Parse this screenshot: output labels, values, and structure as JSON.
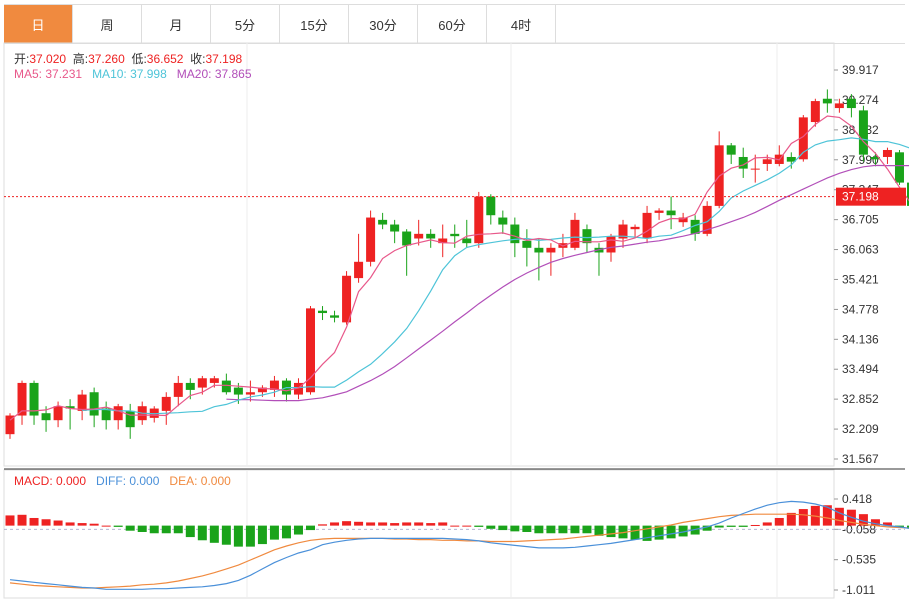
{
  "tabs": [
    {
      "label": "日",
      "active": true
    },
    {
      "label": "周",
      "active": false
    },
    {
      "label": "月",
      "active": false
    },
    {
      "label": "5分",
      "active": false
    },
    {
      "label": "15分",
      "active": false
    },
    {
      "label": "30分",
      "active": false
    },
    {
      "label": "60分",
      "active": false
    },
    {
      "label": "4时",
      "active": false
    }
  ],
  "ohlc_info": {
    "open_label": "开:",
    "open": "37.020",
    "high_label": "高:",
    "high": "37.260",
    "low_label": "低:",
    "low": "36.652",
    "close_label": "收:",
    "close": "37.198"
  },
  "ma_info": {
    "ma5_label": "MA5: ",
    "ma5": "37.231",
    "ma10_label": "MA10: ",
    "ma10": "37.998",
    "ma20_label": "MA20: ",
    "ma20": "37.865"
  },
  "macd_info": {
    "macd_label": "MACD: ",
    "macd": "0.000",
    "diff_label": "DIFF: ",
    "diff": "0.000",
    "dea_label": "DEA: ",
    "dea": "0.000"
  },
  "current_price": "37.198",
  "colors": {
    "up": "#ee2222",
    "down": "#1aa31a",
    "ma5": "#e8588a",
    "ma10": "#4ec4d8",
    "ma20": "#b24fb9",
    "diff": "#4a90d9",
    "dea": "#f08a3f",
    "tab_active": "#f08a3f"
  },
  "chart_data": [
    {
      "type": "candlestick",
      "ylim": [
        31.567,
        39.917
      ],
      "yticks": [
        "39.917",
        "39.274",
        "38.632",
        "37.990",
        "37.347",
        "36.705",
        "36.063",
        "35.421",
        "34.778",
        "34.136",
        "33.494",
        "32.852",
        "32.209",
        "31.567"
      ],
      "candles": [
        [
          32.1,
          32.5,
          32.0,
          32.55
        ],
        [
          32.5,
          33.2,
          32.3,
          33.25
        ],
        [
          33.2,
          32.5,
          32.3,
          33.25
        ],
        [
          32.55,
          32.4,
          32.15,
          32.7
        ],
        [
          32.4,
          32.7,
          32.25,
          32.8
        ],
        [
          32.7,
          32.65,
          32.2,
          32.85
        ],
        [
          32.6,
          32.95,
          32.4,
          33.05
        ],
        [
          33.0,
          32.5,
          32.25,
          33.1
        ],
        [
          32.65,
          32.4,
          32.2,
          32.8
        ],
        [
          32.4,
          32.7,
          32.2,
          32.75
        ],
        [
          32.6,
          32.25,
          32.0,
          32.75
        ],
        [
          32.4,
          32.7,
          32.3,
          32.8
        ],
        [
          32.45,
          32.65,
          32.35,
          32.7
        ],
        [
          32.6,
          32.9,
          32.3,
          33.0
        ],
        [
          32.9,
          33.2,
          32.7,
          33.35
        ],
        [
          33.2,
          33.05,
          32.85,
          33.3
        ],
        [
          33.1,
          33.3,
          32.95,
          33.35
        ],
        [
          33.2,
          33.3,
          33.1,
          33.35
        ],
        [
          33.25,
          33.0,
          32.95,
          33.4
        ],
        [
          33.1,
          32.95,
          32.75,
          33.2
        ],
        [
          32.95,
          33.0,
          32.8,
          33.25
        ],
        [
          33.0,
          33.1,
          32.9,
          33.15
        ],
        [
          33.05,
          33.25,
          32.9,
          33.35
        ],
        [
          33.25,
          32.95,
          32.8,
          33.3
        ],
        [
          32.95,
          33.2,
          32.85,
          33.3
        ],
        [
          33.0,
          34.8,
          32.95,
          34.85
        ],
        [
          34.75,
          34.7,
          34.55,
          34.85
        ],
        [
          34.65,
          34.6,
          34.5,
          34.75
        ],
        [
          34.5,
          35.5,
          34.45,
          35.6
        ],
        [
          35.45,
          35.8,
          35.35,
          36.4
        ],
        [
          35.8,
          36.75,
          35.7,
          36.9
        ],
        [
          36.7,
          36.6,
          36.5,
          36.85
        ],
        [
          36.6,
          36.45,
          36.2,
          36.7
        ],
        [
          36.45,
          36.15,
          35.5,
          36.5
        ],
        [
          36.3,
          36.4,
          36.15,
          36.7
        ],
        [
          36.4,
          36.3,
          36.1,
          36.5
        ],
        [
          36.2,
          36.3,
          35.9,
          36.6
        ],
        [
          36.4,
          36.35,
          36.1,
          36.6
        ],
        [
          36.3,
          36.2,
          36.1,
          36.7
        ],
        [
          36.2,
          37.2,
          36.1,
          37.3
        ],
        [
          37.2,
          36.8,
          36.6,
          37.25
        ],
        [
          36.75,
          36.6,
          36.4,
          36.9
        ],
        [
          36.6,
          36.2,
          35.9,
          36.75
        ],
        [
          36.25,
          36.1,
          35.7,
          36.5
        ],
        [
          36.1,
          36.0,
          35.4,
          36.3
        ],
        [
          36.0,
          36.1,
          35.5,
          36.2
        ],
        [
          36.1,
          36.2,
          35.9,
          36.4
        ],
        [
          36.1,
          36.7,
          36.05,
          36.85
        ],
        [
          36.5,
          36.2,
          36.0,
          36.6
        ],
        [
          36.1,
          36.0,
          35.5,
          36.2
        ],
        [
          36.0,
          36.35,
          35.8,
          36.4
        ],
        [
          36.3,
          36.6,
          36.1,
          36.7
        ],
        [
          36.5,
          36.55,
          36.3,
          36.6
        ],
        [
          36.3,
          36.85,
          36.2,
          37.0
        ],
        [
          36.85,
          36.9,
          36.7,
          36.95
        ],
        [
          36.9,
          36.8,
          36.5,
          37.2
        ],
        [
          36.65,
          36.75,
          36.55,
          36.85
        ],
        [
          36.7,
          36.4,
          36.25,
          36.8
        ],
        [
          36.4,
          37.0,
          36.35,
          37.1
        ],
        [
          37.0,
          38.3,
          36.95,
          38.6
        ],
        [
          38.3,
          38.1,
          37.9,
          38.35
        ],
        [
          38.05,
          37.8,
          37.6,
          38.25
        ],
        [
          37.8,
          37.8,
          37.5,
          38.1
        ],
        [
          37.9,
          38.0,
          37.75,
          38.1
        ],
        [
          37.9,
          38.1,
          37.85,
          38.3
        ],
        [
          38.05,
          37.95,
          37.8,
          38.15
        ],
        [
          38.0,
          38.9,
          37.95,
          38.95
        ],
        [
          38.8,
          39.25,
          38.7,
          39.3
        ],
        [
          39.3,
          39.2,
          39.0,
          39.5
        ],
        [
          39.1,
          39.2,
          39.0,
          39.3
        ],
        [
          39.3,
          39.1,
          38.9,
          39.4
        ],
        [
          39.05,
          38.1,
          37.95,
          39.15
        ],
        [
          38.05,
          38.0,
          37.85,
          38.15
        ],
        [
          38.05,
          38.2,
          37.9,
          38.25
        ],
        [
          38.15,
          37.5,
          37.45,
          38.2
        ],
        [
          37.5,
          37.0,
          36.45,
          37.6
        ],
        [
          37.0,
          36.85,
          36.3,
          37.1
        ],
        [
          36.9,
          37.1,
          36.5,
          37.25
        ],
        [
          37.02,
          37.2,
          36.65,
          37.26
        ]
      ],
      "ma5": [
        32.4,
        32.6,
        32.6,
        32.62,
        32.71,
        32.65,
        32.63,
        32.64,
        32.68,
        32.6,
        32.51,
        32.51,
        32.51,
        32.5,
        32.72,
        32.93,
        33.0,
        33.15,
        33.15,
        33.13,
        33.11,
        33.08,
        33.07,
        33.03,
        33.09,
        33.31,
        33.6,
        33.85,
        34.4,
        35.16,
        35.46,
        35.87,
        36.04,
        36.15,
        36.21,
        36.27,
        36.21,
        36.2,
        36.35,
        36.39,
        36.4,
        36.42,
        36.35,
        36.26,
        36.3,
        36.27,
        36.14,
        36.24,
        36.23,
        36.23,
        36.27,
        36.24,
        36.31,
        36.46,
        36.64,
        36.73,
        36.72,
        36.82,
        37.3,
        37.64,
        37.81,
        37.88,
        38.03,
        38.04,
        37.99,
        38.34,
        38.49,
        38.75,
        38.93,
        38.9,
        38.71,
        38.38,
        38.13,
        37.79,
        37.4,
        37.04,
        36.96,
        37.1,
        37.231
      ],
      "ma10": [
        32.61,
        32.63,
        32.63,
        32.6,
        32.6,
        32.55,
        32.54,
        32.55,
        32.56,
        32.58,
        32.59,
        32.69,
        32.74,
        32.83,
        32.9,
        32.94,
        33.0,
        33.1,
        33.1,
        33.12,
        33.11,
        33.11,
        33.26,
        33.44,
        33.6,
        33.83,
        34.08,
        34.37,
        34.75,
        35.17,
        35.63,
        35.93,
        36.11,
        36.17,
        36.21,
        36.25,
        36.28,
        36.3,
        36.26,
        36.28,
        36.31,
        36.33,
        36.32,
        36.33,
        36.35,
        36.35,
        36.33,
        36.3,
        36.35,
        36.37,
        36.47,
        36.58,
        36.66,
        36.88,
        37.17,
        37.32,
        37.44,
        37.56,
        37.7,
        37.88,
        38.15,
        38.31,
        38.39,
        38.42,
        38.46,
        38.43,
        38.38,
        38.38,
        38.32,
        38.23,
        38.13,
        37.998
      ],
      "ma20": [
        32.85,
        32.84,
        32.84,
        32.83,
        32.82,
        32.82,
        32.82,
        32.85,
        32.88,
        32.94,
        33.01,
        33.13,
        33.25,
        33.39,
        33.55,
        33.74,
        33.93,
        34.12,
        34.31,
        34.51,
        34.7,
        34.9,
        35.08,
        35.26,
        35.42,
        35.56,
        35.68,
        35.79,
        35.87,
        35.94,
        36.0,
        36.06,
        36.11,
        36.14,
        36.18,
        36.22,
        36.25,
        36.3,
        36.35,
        36.41,
        36.49,
        36.57,
        36.66,
        36.75,
        36.86,
        36.99,
        37.12,
        37.24,
        37.36,
        37.48,
        37.6,
        37.7,
        37.78,
        37.84,
        37.87,
        37.865,
        37.865,
        37.865,
        37.865,
        37.87,
        37.88
      ],
      "ma_start": {
        "ma5": 0,
        "ma10": 6,
        "ma20": 18
      }
    },
    {
      "type": "macd",
      "ylim": [
        -1.011,
        0.418
      ],
      "yticks": [
        "0.418",
        "-0.058",
        "-0.535",
        "-1.011"
      ],
      "hist": [
        0.16,
        0.17,
        0.12,
        0.1,
        0.08,
        0.05,
        0.04,
        0.03,
        0.0,
        -0.02,
        -0.08,
        -0.1,
        -0.12,
        -0.12,
        -0.12,
        -0.18,
        -0.23,
        -0.27,
        -0.3,
        -0.33,
        -0.33,
        -0.29,
        -0.22,
        -0.2,
        -0.14,
        -0.07,
        0.02,
        0.05,
        0.07,
        0.06,
        0.05,
        0.05,
        0.04,
        0.05,
        0.05,
        0.04,
        0.05,
        0.0,
        0.0,
        -0.02,
        -0.05,
        -0.07,
        -0.09,
        -0.1,
        -0.12,
        -0.12,
        -0.12,
        -0.12,
        -0.12,
        -0.16,
        -0.18,
        -0.2,
        -0.22,
        -0.24,
        -0.22,
        -0.2,
        -0.17,
        -0.14,
        -0.08,
        -0.03,
        -0.02,
        -0.02,
        0.01,
        0.05,
        0.12,
        0.2,
        0.26,
        0.31,
        0.32,
        0.28,
        0.25,
        0.18,
        0.1,
        0.05,
        -0.02,
        -0.03,
        -0.05,
        -0.02,
        0.0
      ],
      "diff": [
        -0.85,
        -0.87,
        -0.89,
        -0.91,
        -0.93,
        -0.95,
        -0.97,
        -0.98,
        -1.0,
        -1.0,
        -1.0,
        -1.0,
        -0.99,
        -0.99,
        -0.98,
        -0.97,
        -0.96,
        -0.94,
        -0.91,
        -0.86,
        -0.78,
        -0.68,
        -0.58,
        -0.5,
        -0.43,
        -0.38,
        -0.3,
        -0.26,
        -0.23,
        -0.21,
        -0.2,
        -0.2,
        -0.2,
        -0.2,
        -0.2,
        -0.2,
        -0.2,
        -0.21,
        -0.22,
        -0.24,
        -0.27,
        -0.29,
        -0.31,
        -0.33,
        -0.35,
        -0.35,
        -0.35,
        -0.34,
        -0.32,
        -0.3,
        -0.28,
        -0.25,
        -0.22,
        -0.19,
        -0.16,
        -0.13,
        -0.1,
        -0.06,
        -0.02,
        0.04,
        0.12,
        0.19,
        0.26,
        0.32,
        0.36,
        0.38,
        0.37,
        0.34,
        0.29,
        0.2,
        0.13,
        0.07,
        0.03,
        0.0,
        -0.02,
        -0.05,
        -0.07,
        -0.05,
        -0.05
      ],
      "dea": [
        -0.9,
        -0.92,
        -0.94,
        -0.95,
        -0.96,
        -0.97,
        -0.98,
        -0.98,
        -0.97,
        -0.96,
        -0.95,
        -0.93,
        -0.92,
        -0.9,
        -0.87,
        -0.83,
        -0.79,
        -0.74,
        -0.68,
        -0.62,
        -0.54,
        -0.46,
        -0.38,
        -0.32,
        -0.27,
        -0.23,
        -0.21,
        -0.2,
        -0.2,
        -0.2,
        -0.2,
        -0.2,
        -0.21,
        -0.21,
        -0.22,
        -0.22,
        -0.23,
        -0.23,
        -0.24,
        -0.24,
        -0.25,
        -0.25,
        -0.25,
        -0.24,
        -0.23,
        -0.22,
        -0.21,
        -0.19,
        -0.17,
        -0.15,
        -0.13,
        -0.11,
        -0.08,
        -0.05,
        -0.02,
        0.01,
        0.05,
        0.08,
        0.11,
        0.14,
        0.16,
        0.17,
        0.18,
        0.18,
        0.18,
        0.18,
        0.17,
        0.15,
        0.12,
        0.08,
        0.05,
        0.02,
        0.0,
        -0.02,
        -0.03,
        -0.04,
        -0.05,
        -0.05,
        -0.05
      ]
    }
  ]
}
